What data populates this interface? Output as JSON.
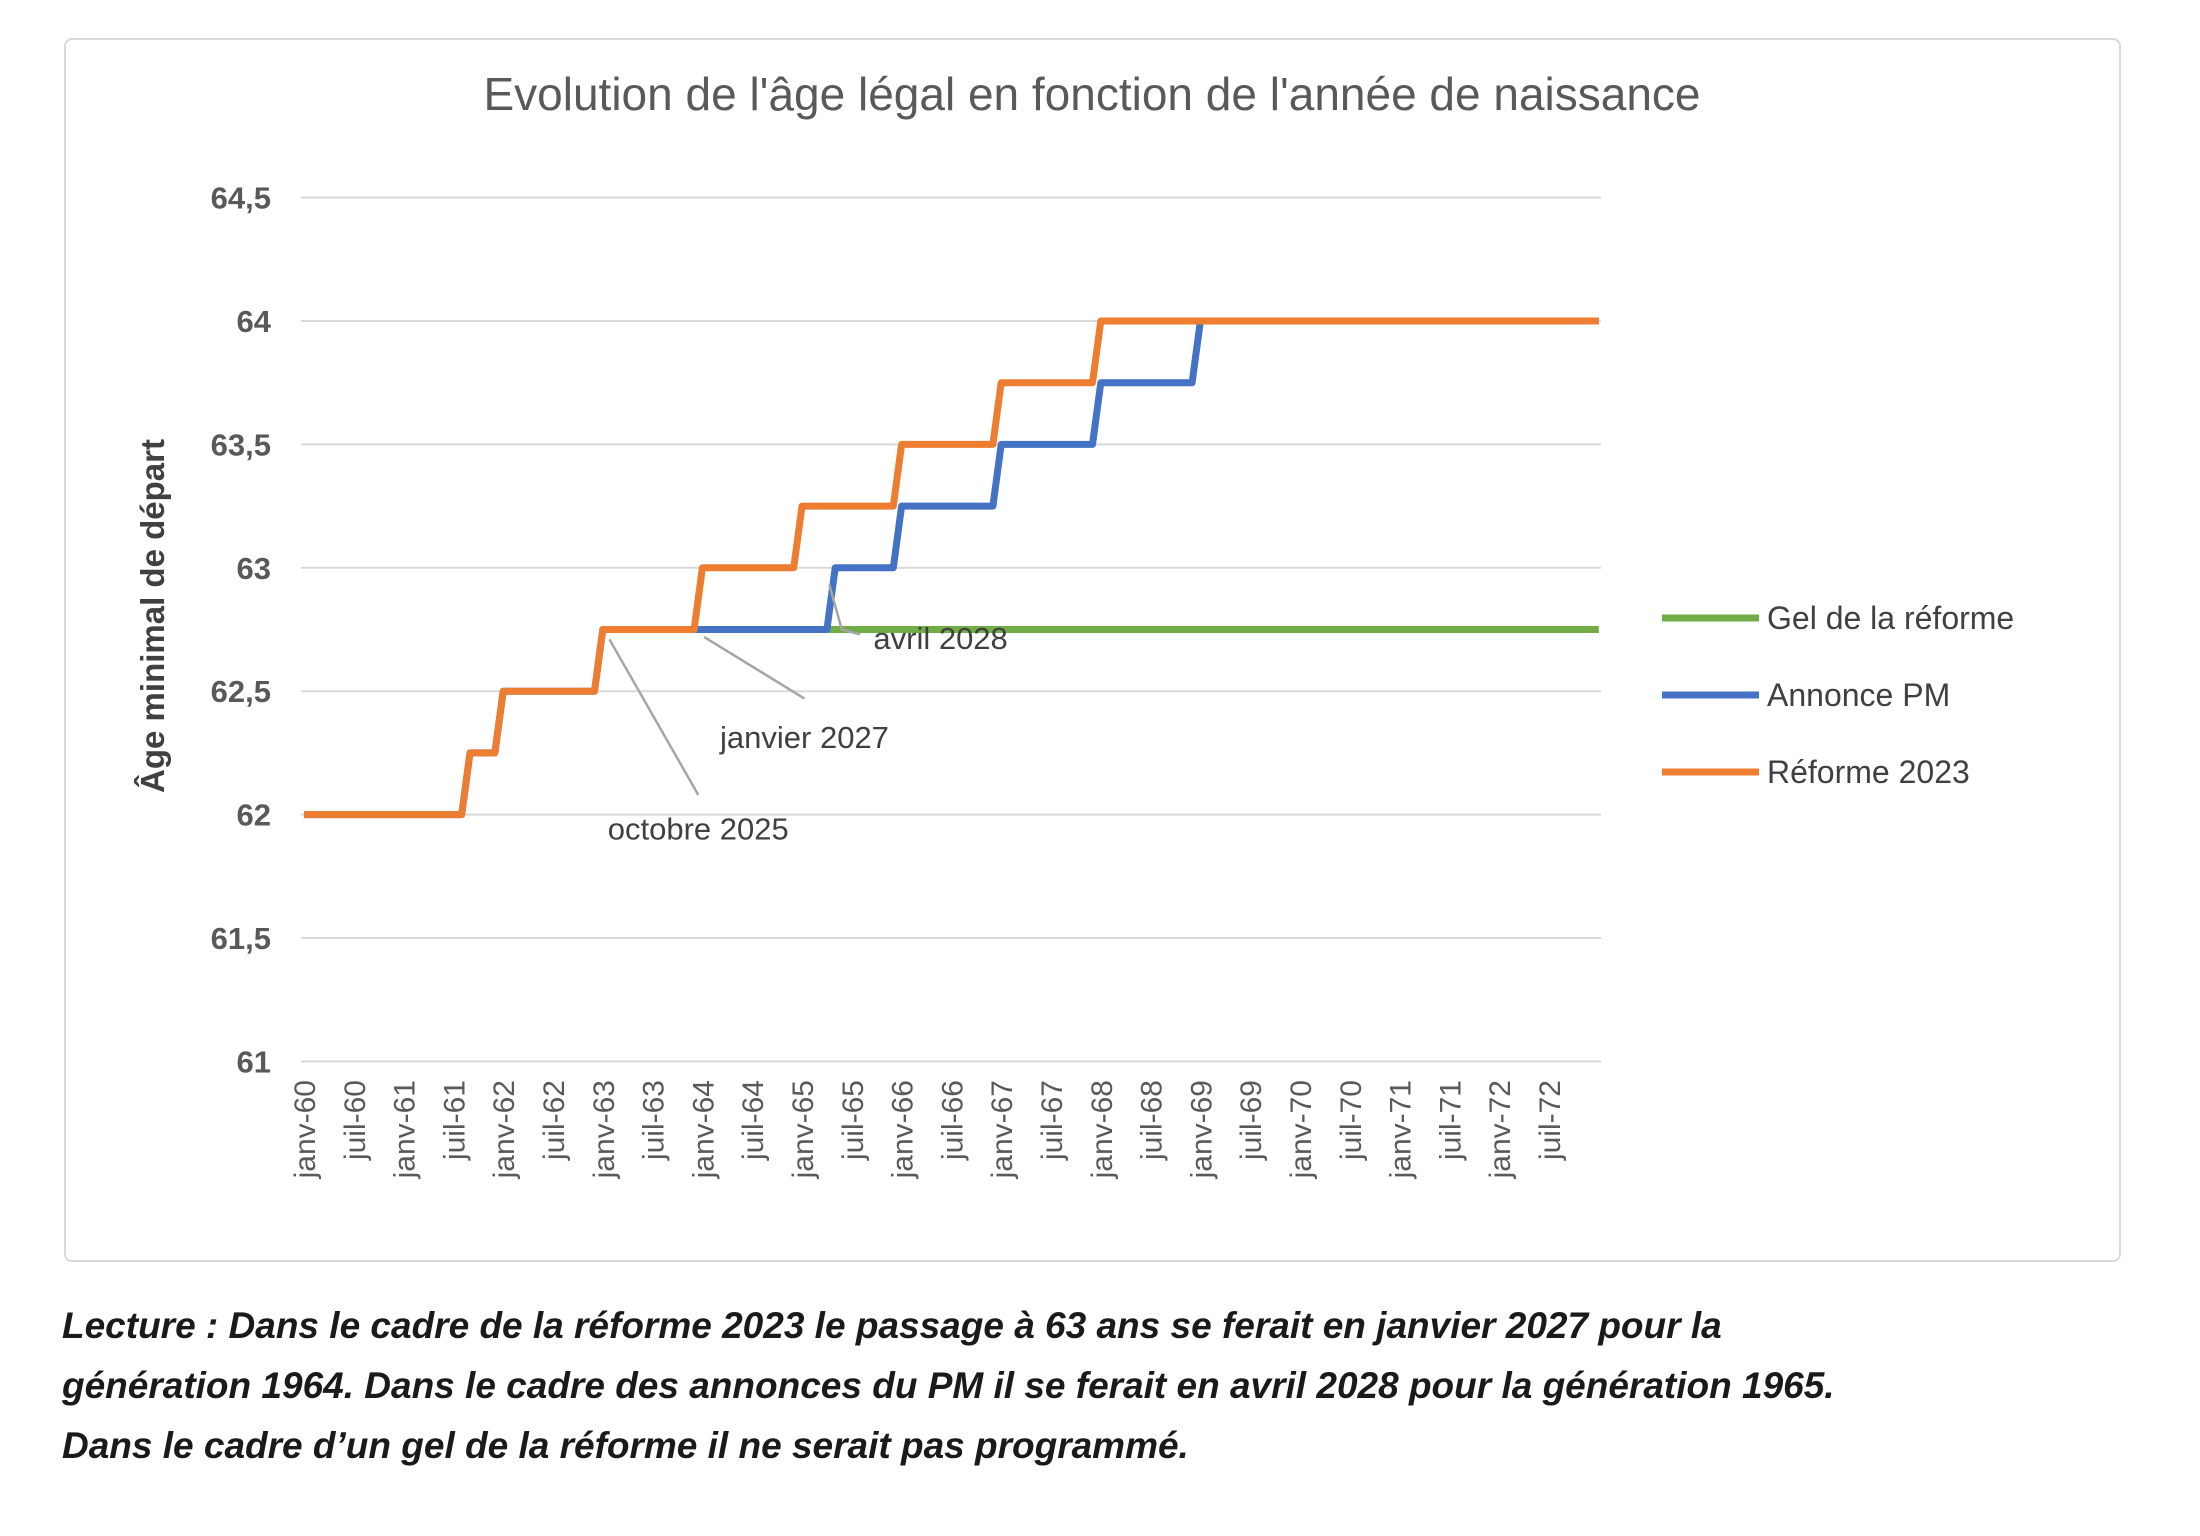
{
  "chart_data": {
    "type": "line",
    "title": "Evolution de l'âge légal en fonction de l'année de naissance",
    "ylabel": "Âge minimal de départ",
    "xlabel": "",
    "ylim": [
      61,
      64.5
    ],
    "grid": "horizontal",
    "legend_position": "right",
    "x_unit": "birth month, months since janv-1960",
    "ytick_values": [
      64.5,
      64,
      63.5,
      63,
      62.5,
      62,
      61.5,
      61
    ],
    "ytick_labels": [
      "64,5",
      "64",
      "63,5",
      "63",
      "62,5",
      "62",
      "61,5",
      "61"
    ],
    "xtick_months": [
      0,
      6,
      12,
      18,
      24,
      30,
      36,
      42,
      48,
      54,
      60,
      66,
      72,
      78,
      84,
      90,
      96,
      102,
      108,
      114,
      120,
      126,
      132,
      138,
      144,
      150
    ],
    "xtick_labels": [
      "janv-60",
      "juil-60",
      "janv-61",
      "juil-61",
      "janv-62",
      "juil-62",
      "janv-63",
      "juil-63",
      "janv-64",
      "juil-64",
      "janv-65",
      "juil-65",
      "janv-66",
      "juil-66",
      "janv-67",
      "juil-67",
      "janv-68",
      "juil-68",
      "janv-69",
      "juil-69",
      "janv-70",
      "juil-70",
      "janv-71",
      "juil-71",
      "janv-72",
      "juil-72"
    ],
    "series": [
      {
        "name": "Gel de la réforme",
        "color": "#70AD47",
        "points": [
          [
            36,
            62.75
          ],
          [
            156,
            62.75
          ]
        ]
      },
      {
        "name": "Annonce PM",
        "color": "#4472C4",
        "points": [
          [
            0,
            62
          ],
          [
            19,
            62
          ],
          [
            20,
            62.25
          ],
          [
            23,
            62.25
          ],
          [
            24,
            62.5
          ],
          [
            35,
            62.5
          ],
          [
            36,
            62.75
          ],
          [
            63,
            62.75
          ],
          [
            64,
            63
          ],
          [
            71,
            63
          ],
          [
            72,
            63.25
          ],
          [
            83,
            63.25
          ],
          [
            84,
            63.5
          ],
          [
            95,
            63.5
          ],
          [
            96,
            63.75
          ],
          [
            107,
            63.75
          ],
          [
            108,
            64
          ],
          [
            156,
            64
          ]
        ]
      },
      {
        "name": "Réforme 2023",
        "color": "#ED7D31",
        "points": [
          [
            0,
            62
          ],
          [
            19,
            62
          ],
          [
            20,
            62.25
          ],
          [
            23,
            62.25
          ],
          [
            24,
            62.5
          ],
          [
            35,
            62.5
          ],
          [
            36,
            62.75
          ],
          [
            47,
            62.75
          ],
          [
            48,
            63
          ],
          [
            59,
            63
          ],
          [
            60,
            63.25
          ],
          [
            71,
            63.25
          ],
          [
            72,
            63.5
          ],
          [
            83,
            63.5
          ],
          [
            84,
            63.75
          ],
          [
            95,
            63.75
          ],
          [
            96,
            64
          ],
          [
            156,
            64
          ]
        ]
      }
    ],
    "legend": [
      "Gel de la réforme",
      "Annonce PM",
      "Réforme 2023"
    ],
    "annotations": [
      {
        "label": "octobre 2025",
        "path": [
          [
            36.8,
            62.71
          ],
          [
            47.5,
            62.08
          ]
        ],
        "text_at": [
          47.5,
          61.9
        ],
        "anchor": "middle"
      },
      {
        "label": "janvier 2027",
        "path": [
          [
            48.2,
            62.72
          ],
          [
            60.3,
            62.47
          ]
        ],
        "text_at": [
          60.3,
          62.27
        ],
        "anchor": "middle"
      },
      {
        "label": "avril 2028",
        "path": [
          [
            63.3,
            62.93
          ],
          [
            64.8,
            62.75
          ],
          [
            67.0,
            62.73
          ]
        ],
        "text_at": [
          68.6,
          62.67
        ],
        "anchor": "start"
      }
    ]
  },
  "colors": {
    "gridline": "#d9d9d9",
    "axis_text": "#595959",
    "title_text": "#595959",
    "annotation_text": "#404040",
    "leader_line": "#a6a6a6",
    "legend_text": "#404040"
  },
  "caption": {
    "lines": [
      "Lecture : Dans le cadre de la réforme 2023 le passage à 63 ans se ferait en janvier 2027 pour la",
      "génération 1964. Dans le cadre des annonces du PM il se ferait en avril 2028 pour la génération 1965.",
      "Dans le cadre d’un gel de la réforme il ne serait pas programmé."
    ]
  }
}
